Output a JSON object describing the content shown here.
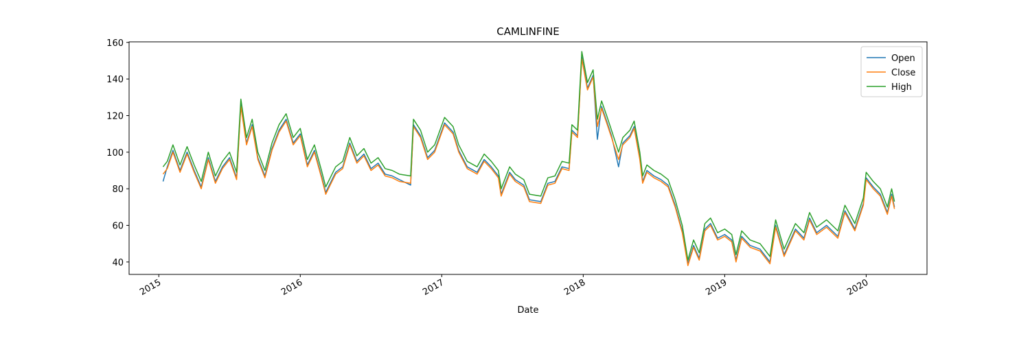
{
  "chart_data": {
    "type": "line",
    "title": "CAMLINFINE",
    "xlabel": "Date",
    "x": [
      2015.03,
      2015.06,
      2015.1,
      2015.15,
      2015.2,
      2015.25,
      2015.3,
      2015.35,
      2015.4,
      2015.45,
      2015.5,
      2015.55,
      2015.58,
      2015.62,
      2015.66,
      2015.7,
      2015.75,
      2015.8,
      2015.85,
      2015.9,
      2015.95,
      2016.0,
      2016.05,
      2016.1,
      2016.15,
      2016.18,
      2016.25,
      2016.3,
      2016.35,
      2016.4,
      2016.45,
      2016.5,
      2016.55,
      2016.6,
      2016.65,
      2016.7,
      2016.78,
      2016.8,
      2016.85,
      2016.9,
      2016.95,
      2017.02,
      2017.08,
      2017.12,
      2017.18,
      2017.25,
      2017.3,
      2017.35,
      2017.4,
      2017.42,
      2017.48,
      2017.52,
      2017.58,
      2017.62,
      2017.7,
      2017.75,
      2017.8,
      2017.85,
      2017.9,
      2017.92,
      2017.96,
      2017.99,
      2018.03,
      2018.07,
      2018.1,
      2018.13,
      2018.17,
      2018.2,
      2018.25,
      2018.28,
      2018.33,
      2018.36,
      2018.4,
      2018.42,
      2018.45,
      2018.5,
      2018.55,
      2018.6,
      2018.65,
      2018.7,
      2018.74,
      2018.78,
      2018.82,
      2018.86,
      2018.9,
      2018.95,
      2019.0,
      2019.05,
      2019.08,
      2019.12,
      2019.18,
      2019.25,
      2019.32,
      2019.36,
      2019.42,
      2019.5,
      2019.56,
      2019.6,
      2019.65,
      2019.72,
      2019.8,
      2019.85,
      2019.92,
      2019.98,
      2020.0,
      2020.05,
      2020.1,
      2020.15,
      2020.18,
      2020.2
    ],
    "series": [
      {
        "name": "Open",
        "color": "#1f77b4",
        "values": [
          84,
          92,
          101,
          90,
          100,
          90,
          81,
          97,
          84,
          92,
          97,
          86,
          126,
          105,
          115,
          97,
          87,
          102,
          112,
          118,
          105,
          110,
          93,
          101,
          87,
          78,
          89,
          92,
          105,
          95,
          99,
          91,
          94,
          88,
          87,
          85,
          82,
          115,
          109,
          97,
          101,
          116,
          111,
          101,
          92,
          89,
          96,
          92,
          87,
          77,
          89,
          85,
          82,
          74,
          73,
          83,
          84,
          92,
          91,
          112,
          109,
          152,
          135,
          142,
          107,
          125,
          116,
          109,
          92,
          105,
          109,
          114,
          97,
          84,
          90,
          87,
          85,
          82,
          71,
          57,
          39,
          49,
          42,
          58,
          61,
          53,
          55,
          52,
          41,
          54,
          49,
          47,
          40,
          60,
          44,
          58,
          53,
          64,
          56,
          60,
          54,
          68,
          58,
          72,
          86,
          81,
          77,
          67,
          77,
          70
        ]
      },
      {
        "name": "Close",
        "color": "#ff7f0e",
        "values": [
          88,
          91,
          100,
          89,
          99,
          89,
          80,
          96,
          83,
          91,
          96,
          85,
          125,
          104,
          114,
          96,
          86,
          101,
          111,
          117,
          104,
          109,
          92,
          100,
          86,
          77,
          88,
          91,
          104,
          94,
          98,
          90,
          93,
          87,
          86,
          84,
          83,
          114,
          108,
          96,
          100,
          115,
          110,
          100,
          91,
          88,
          95,
          91,
          86,
          76,
          88,
          84,
          81,
          73,
          72,
          82,
          83,
          91,
          90,
          111,
          108,
          151,
          134,
          141,
          114,
          124,
          115,
          108,
          96,
          104,
          108,
          113,
          96,
          83,
          89,
          86,
          84,
          81,
          70,
          56,
          38,
          48,
          41,
          57,
          60,
          52,
          54,
          51,
          40,
          53,
          48,
          46,
          39,
          59,
          43,
          57,
          52,
          63,
          55,
          59,
          53,
          67,
          57,
          71,
          85,
          80,
          76,
          66,
          76,
          69
        ]
      },
      {
        "name": "High",
        "color": "#2ca02c",
        "values": [
          92,
          95,
          104,
          93,
          103,
          93,
          84,
          100,
          87,
          95,
          100,
          89,
          129,
          108,
          118,
          100,
          90,
          105,
          115,
          121,
          108,
          113,
          96,
          104,
          90,
          81,
          92,
          95,
          108,
          98,
          102,
          94,
          97,
          91,
          90,
          88,
          87,
          118,
          112,
          100,
          104,
          119,
          114,
          104,
          95,
          92,
          99,
          95,
          90,
          80,
          92,
          88,
          85,
          77,
          76,
          86,
          87,
          95,
          94,
          115,
          112,
          155,
          138,
          145,
          118,
          128,
          119,
          112,
          100,
          108,
          112,
          117,
          100,
          87,
          93,
          90,
          88,
          85,
          74,
          60,
          41,
          52,
          45,
          61,
          64,
          56,
          58,
          55,
          44,
          57,
          52,
          50,
          43,
          63,
          47,
          61,
          56,
          67,
          59,
          63,
          57,
          71,
          61,
          75,
          89,
          84,
          80,
          70,
          80,
          73
        ]
      }
    ],
    "xlim": [
      2014.79,
      2020.43
    ],
    "xticks": [
      2015,
      2016,
      2017,
      2018,
      2019,
      2020
    ],
    "ylim": [
      33.2,
      160.3
    ],
    "yticks": [
      40,
      60,
      80,
      100,
      120,
      140,
      160
    ],
    "legend": "upper right"
  }
}
